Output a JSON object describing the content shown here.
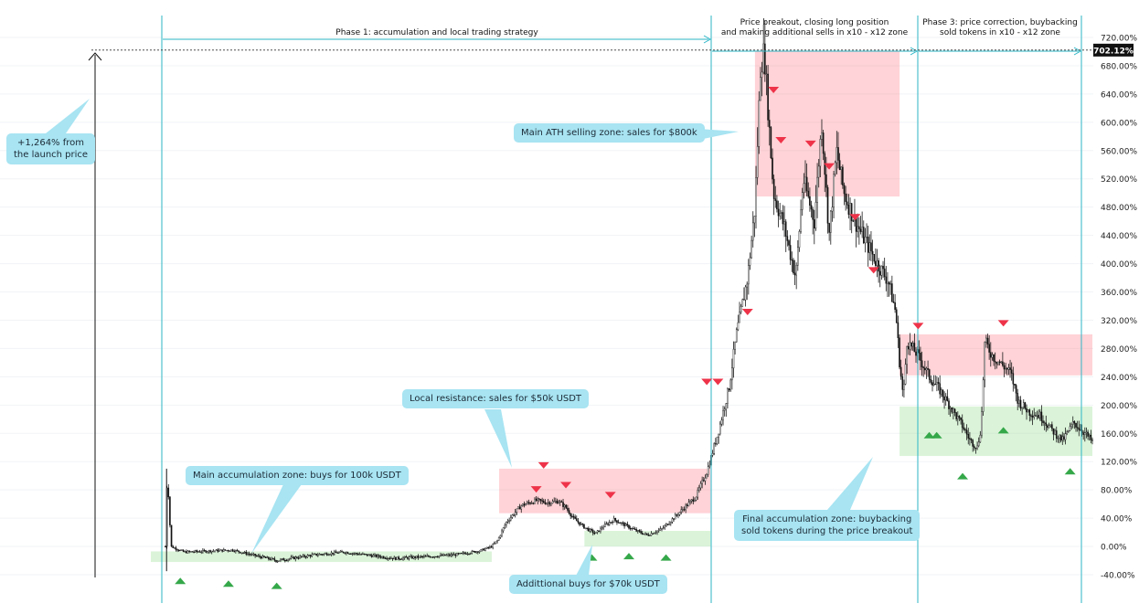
{
  "chart_data": {
    "type": "candlestick",
    "ylabel_unit": "%",
    "y_ticks": [
      "720.00%",
      "680.00%",
      "640.00%",
      "600.00%",
      "560.00%",
      "520.00%",
      "480.00%",
      "440.00%",
      "400.00%",
      "360.00%",
      "320.00%",
      "280.00%",
      "240.00%",
      "200.00%",
      "160.00%",
      "120.00%",
      "80.00%",
      "40.00%",
      "0.00%",
      "-40.00%"
    ],
    "ylim": [
      -45,
      735
    ],
    "current_value_label": "702.12%",
    "current_value": 702.12,
    "price_path_keypoints": [
      [
        0,
        0
      ],
      [
        0.5,
        105
      ],
      [
        1.5,
        0
      ],
      [
        5,
        -8
      ],
      [
        18,
        -5
      ],
      [
        25,
        -14
      ],
      [
        30,
        -20
      ],
      [
        40,
        -12
      ],
      [
        48,
        -8
      ],
      [
        62,
        -17
      ],
      [
        78,
        -12
      ],
      [
        85,
        -6
      ],
      [
        88,
        0
      ],
      [
        89.5,
        8
      ],
      [
        92,
        35
      ],
      [
        96,
        58
      ],
      [
        100,
        65
      ],
      [
        103,
        62
      ],
      [
        106,
        64
      ],
      [
        108,
        55
      ],
      [
        110,
        40
      ],
      [
        113,
        27
      ],
      [
        116,
        18
      ],
      [
        118,
        28
      ],
      [
        121,
        38
      ],
      [
        124,
        30
      ],
      [
        127,
        22
      ],
      [
        130,
        16
      ],
      [
        134,
        25
      ],
      [
        137,
        40
      ],
      [
        140,
        55
      ],
      [
        143,
        70
      ],
      [
        146,
        105
      ],
      [
        149,
        160
      ],
      [
        152,
        225
      ],
      [
        154,
        300
      ],
      [
        157,
        380
      ],
      [
        159,
        480
      ],
      [
        160.5,
        680
      ],
      [
        161.5,
        702
      ],
      [
        162.5,
        620
      ],
      [
        164,
        500
      ],
      [
        167,
        450
      ],
      [
        170,
        380
      ],
      [
        172,
        520
      ],
      [
        175,
        460
      ],
      [
        177,
        600
      ],
      [
        179,
        440
      ],
      [
        181,
        560
      ],
      [
        183,
        500
      ],
      [
        186,
        460
      ],
      [
        189,
        430
      ],
      [
        192,
        400
      ],
      [
        195,
        375
      ],
      [
        197,
        330
      ],
      [
        198,
        260
      ],
      [
        199,
        210
      ],
      [
        200,
        290
      ],
      [
        203,
        270
      ],
      [
        206,
        240
      ],
      [
        209,
        220
      ],
      [
        212,
        195
      ],
      [
        215,
        170
      ],
      [
        217,
        150
      ],
      [
        219,
        140
      ],
      [
        220,
        170
      ],
      [
        221,
        290
      ],
      [
        223,
        270
      ],
      [
        226,
        255
      ],
      [
        228,
        245
      ],
      [
        230,
        205
      ],
      [
        233,
        190
      ],
      [
        236,
        185
      ],
      [
        239,
        165
      ],
      [
        242,
        150
      ],
      [
        245,
        175
      ],
      [
        248,
        160
      ],
      [
        250,
        148
      ]
    ],
    "sell_markers": [
      [
        -0.5,
        0,
        "top",
        80
      ],
      [
        1,
        0,
        "top",
        80
      ],
      [
        1,
        0,
        "top",
        80
      ],
      [
        1,
        0,
        "top",
        80
      ],
      [
        1,
        0,
        "top",
        80
      ]
    ],
    "annotations": {
      "phase1": "Phase 1: accumulation and local trading strategy",
      "phase2_line1": "Price breakout, closing long position",
      "phase2_line2": "and making additional sells in x10 - x12 zone",
      "phase3_line1": "Phase 3: price correction, buybacking",
      "phase3_line2": "sold tokens in x10 - x12 zone",
      "launch_line1": "+1,264% from",
      "launch_line2": "the launch price",
      "ath_zone": "Main ATH selling zone: sales for $800k",
      "local_resistance": "Local resistance: sales for $50k USDT",
      "main_accumulation": "Main accumulation zone: buys for 100k USDT",
      "additional_buys": "Addittional buys for $70k USDT",
      "final_line1": "Final accumulation zone: buybacking",
      "final_line2": "sold tokens during the price breakout"
    },
    "zones": [
      {
        "kind": "buy",
        "name": "main-accumulation-zone",
        "x0": 0,
        "x1": 88,
        "y0": -22,
        "y1": -7
      },
      {
        "kind": "sell",
        "name": "local-resistance-zone",
        "x0": 90,
        "x1": 147,
        "y0": 47,
        "y1": 110
      },
      {
        "kind": "buy",
        "name": "additional-buys-zone",
        "x0": 113,
        "x1": 147,
        "y0": 0,
        "y1": 22
      },
      {
        "kind": "sell",
        "name": "ath-selling-zone",
        "x0": 159,
        "x1": 198,
        "y0": 495,
        "y1": 700
      },
      {
        "kind": "sell",
        "name": "x10-x12-sell-zone",
        "x0": 198,
        "x1": 250,
        "y0": 242,
        "y1": 300
      },
      {
        "kind": "buy",
        "name": "final-accumulation-zone",
        "x0": 198,
        "x1": 250,
        "y0": 128,
        "y1": 198
      }
    ],
    "sell_arrows": [
      [
        100,
        80
      ],
      [
        102,
        114
      ],
      [
        108,
        86
      ],
      [
        120,
        72
      ],
      [
        157,
        331
      ],
      [
        164,
        645
      ],
      [
        166,
        574
      ],
      [
        174,
        569
      ],
      [
        179,
        537
      ],
      [
        186,
        465
      ],
      [
        191,
        390
      ],
      [
        203,
        311
      ],
      [
        226,
        315
      ],
      [
        149,
        232
      ],
      [
        146,
        232
      ]
    ],
    "buy_arrows": [
      [
        4,
        -48
      ],
      [
        17,
        -52
      ],
      [
        30,
        -55
      ],
      [
        115,
        -15
      ],
      [
        135,
        -15
      ],
      [
        226,
        165
      ],
      [
        208,
        158
      ],
      [
        215,
        100
      ],
      [
        244,
        107
      ],
      [
        125,
        -13
      ],
      [
        206,
        158
      ]
    ],
    "phase_dividers": [
      0,
      153,
      204,
      251
    ]
  }
}
